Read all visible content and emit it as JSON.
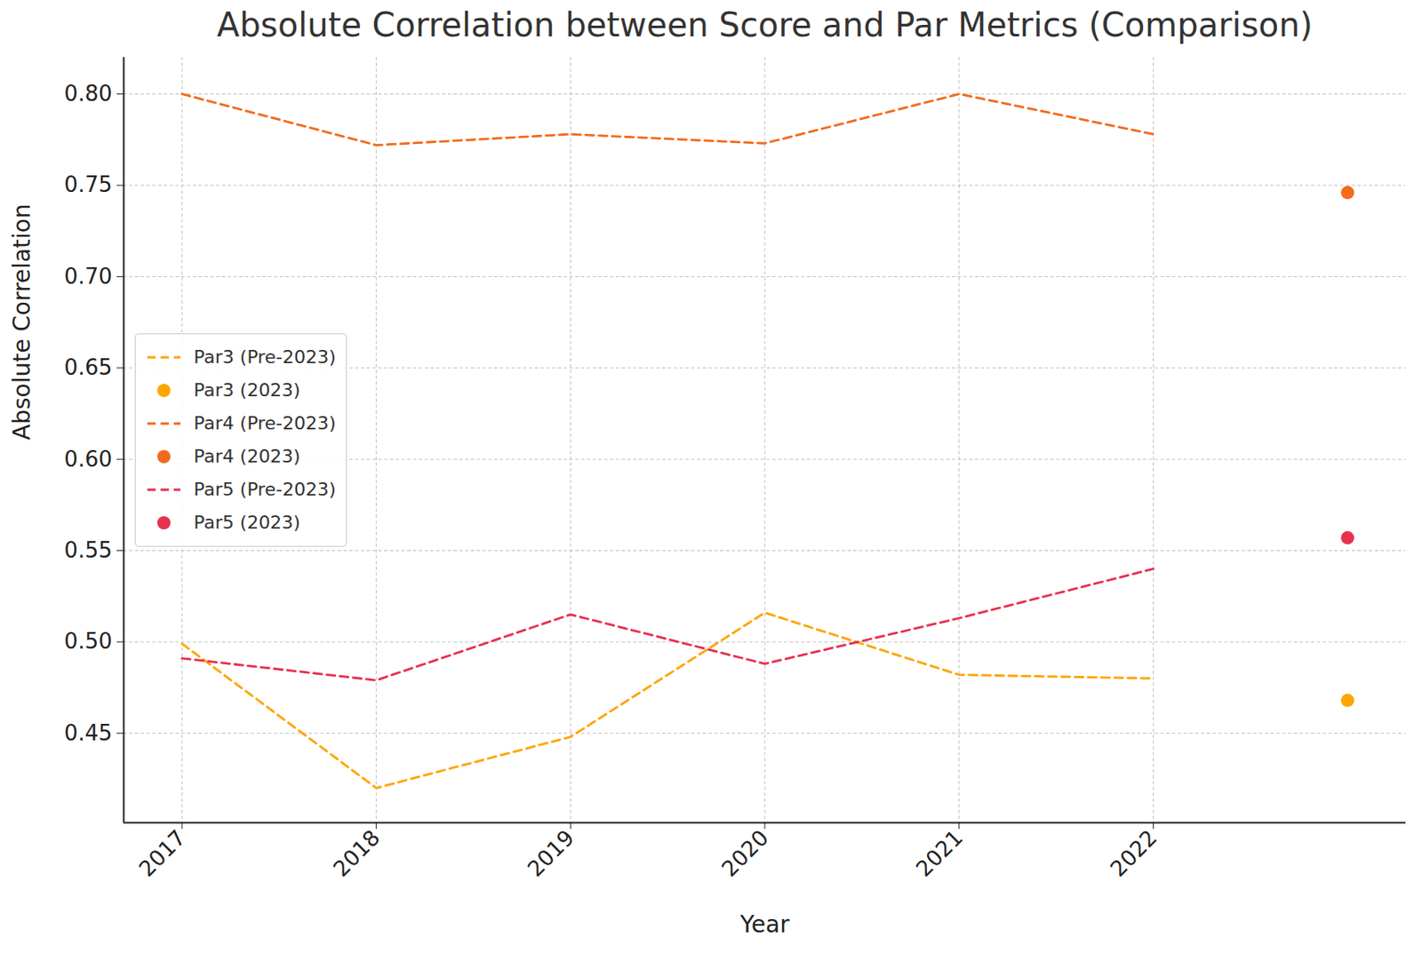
{
  "chart_data": {
    "type": "line",
    "title": "Absolute Correlation between Score and Par Metrics (Comparison)",
    "x_label": "Year",
    "y_label": "Absolute Correlation",
    "x": [
      2017,
      2018,
      2019,
      2020,
      2021,
      2022,
      2023
    ],
    "xlim": [
      2016.7,
      2023.3
    ],
    "xticks": [
      2017,
      2018,
      2019,
      2020,
      2021,
      2022
    ],
    "ylim": [
      0.401,
      0.82
    ],
    "yticks": [
      0.45,
      {
        "value": 0.5,
        "label": "0.50"
      },
      0.55,
      {
        "value": 0.6,
        "label": "0.60"
      },
      0.65,
      {
        "value": 0.7,
        "label": "0.70"
      },
      0.75,
      {
        "value": 0.8,
        "label": "0.80"
      }
    ],
    "grid": true,
    "legend": "center left",
    "series": [
      {
        "name": "Par3 (Pre-2023)",
        "type": "line",
        "line_style": "dashed",
        "color": "#ffa500",
        "values": [
          0.499,
          0.42,
          0.448,
          0.516,
          0.482,
          0.48,
          null
        ]
      },
      {
        "name": "Par3 (2023)",
        "type": "scatter",
        "marker": "circle",
        "color": "#ffa500",
        "values": [
          null,
          null,
          null,
          null,
          null,
          null,
          0.468
        ]
      },
      {
        "name": "Par4 (Pre-2023)",
        "type": "line",
        "line_style": "dashed",
        "color": "#f26b1d",
        "values": [
          0.8,
          0.772,
          0.778,
          0.773,
          0.8,
          0.778,
          null
        ]
      },
      {
        "name": "Par4 (2023)",
        "type": "scatter",
        "marker": "circle",
        "color": "#f26b1d",
        "values": [
          null,
          null,
          null,
          null,
          null,
          null,
          0.746
        ]
      },
      {
        "name": "Par5 (Pre-2023)",
        "type": "line",
        "line_style": "dashed",
        "color": "#e8304f",
        "values": [
          0.491,
          0.479,
          0.515,
          0.488,
          0.513,
          0.54,
          null
        ]
      },
      {
        "name": "Par5 (2023)",
        "type": "scatter",
        "marker": "circle",
        "color": "#e8304f",
        "values": [
          null,
          null,
          null,
          null,
          null,
          null,
          0.557
        ]
      }
    ]
  }
}
